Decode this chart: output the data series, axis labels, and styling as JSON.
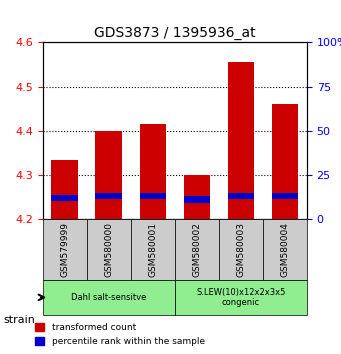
{
  "title": "GDS3873 / 1395936_at",
  "samples": [
    "GSM579999",
    "GSM580000",
    "GSM580001",
    "GSM580002",
    "GSM580003",
    "GSM580004"
  ],
  "bar_values": [
    4.335,
    4.4,
    4.415,
    4.3,
    4.555,
    4.46
  ],
  "bar_base": 4.2,
  "percentile_values": [
    12,
    13,
    13,
    11,
    13,
    13
  ],
  "percentile_scale_max": 100,
  "ylim_left": [
    4.2,
    4.6
  ],
  "ylim_right": [
    0,
    100
  ],
  "yticks_left": [
    4.2,
    4.3,
    4.4,
    4.5,
    4.6
  ],
  "yticks_right": [
    0,
    25,
    50,
    75,
    100
  ],
  "bar_color": "#cc0000",
  "percentile_color": "#0000cc",
  "bar_width": 0.6,
  "groups": [
    {
      "label": "Dahl salt-sensitve",
      "start": 0,
      "end": 3,
      "color": "#90ee90"
    },
    {
      "label": "S.LEW(10)x12x2x3x5\ncongenic",
      "start": 3,
      "end": 6,
      "color": "#90ee90"
    }
  ],
  "strain_label": "strain",
  "legend_items": [
    {
      "color": "#cc0000",
      "label": "transformed count"
    },
    {
      "color": "#0000cc",
      "label": "percentile rank within the sample"
    }
  ],
  "grid_linestyle": "dotted",
  "xlabel_area_color": "#cccccc",
  "background_color": "#ffffff"
}
